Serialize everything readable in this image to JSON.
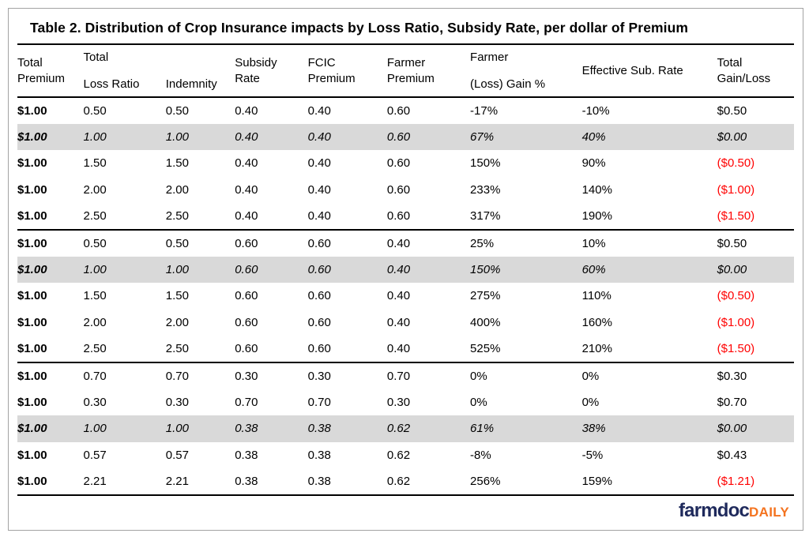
{
  "title": "Table 2. Distribution of Crop Insurance impacts by Loss Ratio, Subsidy Rate, per dollar of Premium",
  "chart_data": {
    "type": "table",
    "columns": [
      "Total Premium",
      "Total Loss Ratio",
      "Indemnity",
      "Subsidy Rate",
      "FCIC Premium",
      "Farmer Premium",
      "Farmer (Loss) Gain %",
      "Effective Sub. Rate",
      "Total Gain/Loss"
    ],
    "header_lines": [
      [
        "Total",
        "Premium"
      ],
      [
        "Total",
        "Loss Ratio"
      ],
      [
        "Indemnity"
      ],
      [
        "Subsidy",
        "Rate"
      ],
      [
        "FCIC",
        "Premium"
      ],
      [
        "Farmer",
        "Premium"
      ],
      [
        "Farmer",
        "(Loss) Gain %"
      ],
      [
        "Effective Sub. Rate"
      ],
      [
        "Total",
        "Gain/Loss"
      ]
    ],
    "blocks": [
      {
        "rows": [
          {
            "cells": [
              "$1.00",
              "0.50",
              "0.50",
              "0.40",
              "0.40",
              "0.60",
              "-17%",
              "-10%",
              "$0.50"
            ],
            "highlight": false
          },
          {
            "cells": [
              "$1.00",
              "1.00",
              "1.00",
              "0.40",
              "0.40",
              "0.60",
              "67%",
              "40%",
              "$0.00"
            ],
            "highlight": true
          },
          {
            "cells": [
              "$1.00",
              "1.50",
              "1.50",
              "0.40",
              "0.40",
              "0.60",
              "150%",
              "90%",
              "($0.50)"
            ],
            "highlight": false
          },
          {
            "cells": [
              "$1.00",
              "2.00",
              "2.00",
              "0.40",
              "0.40",
              "0.60",
              "233%",
              "140%",
              "($1.00)"
            ],
            "highlight": false
          },
          {
            "cells": [
              "$1.00",
              "2.50",
              "2.50",
              "0.40",
              "0.40",
              "0.60",
              "317%",
              "190%",
              "($1.50)"
            ],
            "highlight": false
          }
        ]
      },
      {
        "rows": [
          {
            "cells": [
              "$1.00",
              "0.50",
              "0.50",
              "0.60",
              "0.60",
              "0.40",
              "25%",
              "10%",
              "$0.50"
            ],
            "highlight": false
          },
          {
            "cells": [
              "$1.00",
              "1.00",
              "1.00",
              "0.60",
              "0.60",
              "0.40",
              "150%",
              "60%",
              "$0.00"
            ],
            "highlight": true
          },
          {
            "cells": [
              "$1.00",
              "1.50",
              "1.50",
              "0.60",
              "0.60",
              "0.40",
              "275%",
              "110%",
              "($0.50)"
            ],
            "highlight": false
          },
          {
            "cells": [
              "$1.00",
              "2.00",
              "2.00",
              "0.60",
              "0.60",
              "0.40",
              "400%",
              "160%",
              "($1.00)"
            ],
            "highlight": false
          },
          {
            "cells": [
              "$1.00",
              "2.50",
              "2.50",
              "0.60",
              "0.60",
              "0.40",
              "525%",
              "210%",
              "($1.50)"
            ],
            "highlight": false
          }
        ]
      },
      {
        "rows": [
          {
            "cells": [
              "$1.00",
              "0.70",
              "0.70",
              "0.30",
              "0.30",
              "0.70",
              "0%",
              "0%",
              "$0.30"
            ],
            "highlight": false
          },
          {
            "cells": [
              "$1.00",
              "0.30",
              "0.30",
              "0.70",
              "0.70",
              "0.30",
              "0%",
              "0%",
              "$0.70"
            ],
            "highlight": false
          },
          {
            "cells": [
              "$1.00",
              "1.00",
              "1.00",
              "0.38",
              "0.38",
              "0.62",
              "61%",
              "38%",
              "$0.00"
            ],
            "highlight": true
          },
          {
            "cells": [
              "$1.00",
              "0.57",
              "0.57",
              "0.38",
              "0.38",
              "0.62",
              "-8%",
              "-5%",
              "$0.43"
            ],
            "highlight": false
          },
          {
            "cells": [
              "$1.00",
              "2.21",
              "2.21",
              "0.38",
              "0.38",
              "0.62",
              "256%",
              "159%",
              "($1.21)"
            ],
            "highlight": false
          }
        ]
      }
    ]
  },
  "logo": {
    "primary": "farmdoc",
    "secondary": "DAILY"
  },
  "colors": {
    "negative_text": "#ff0000",
    "highlight_row_bg": "#d9d9d9",
    "rule": "#000000",
    "logo_primary": "#1f2a5c",
    "logo_secondary": "#f4731f"
  }
}
